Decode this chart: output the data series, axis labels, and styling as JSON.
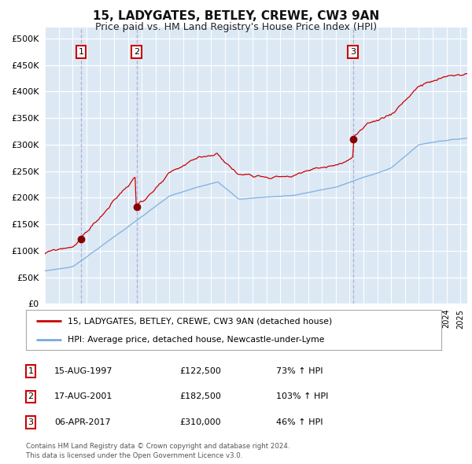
{
  "title": "15, LADYGATES, BETLEY, CREWE, CW3 9AN",
  "subtitle": "Price paid vs. HM Land Registry's House Price Index (HPI)",
  "title_fontsize": 11,
  "subtitle_fontsize": 9,
  "background_color": "#ffffff",
  "plot_bg_color": "#dce9f5",
  "grid_color": "#ffffff",
  "sale_prices": [
    122500,
    182500,
    310000
  ],
  "sale_labels": [
    "1",
    "2",
    "3"
  ],
  "sale_info": [
    [
      "1",
      "15-AUG-1997",
      "£122,500",
      "73% ↑ HPI"
    ],
    [
      "2",
      "17-AUG-2001",
      "£182,500",
      "103% ↑ HPI"
    ],
    [
      "3",
      "06-APR-2017",
      "£310,000",
      "46% ↑ HPI"
    ]
  ],
  "legend_line1": "15, LADYGATES, BETLEY, CREWE, CW3 9AN (detached house)",
  "legend_line2": "HPI: Average price, detached house, Newcastle-under-Lyme",
  "footer_line1": "Contains HM Land Registry data © Crown copyright and database right 2024.",
  "footer_line2": "This data is licensed under the Open Government Licence v3.0.",
  "red_line_color": "#cc0000",
  "blue_line_color": "#7aaadd",
  "marker_color": "#880000",
  "dashed_line_color": "#aaaacc",
  "xstart": 1995.0,
  "xend": 2025.5,
  "ymin": 0,
  "ymax": 520000,
  "yticks": [
    0,
    50000,
    100000,
    150000,
    200000,
    250000,
    300000,
    350000,
    400000,
    450000,
    500000
  ],
  "sale_years": [
    1997.625,
    2001.625,
    2017.25
  ]
}
